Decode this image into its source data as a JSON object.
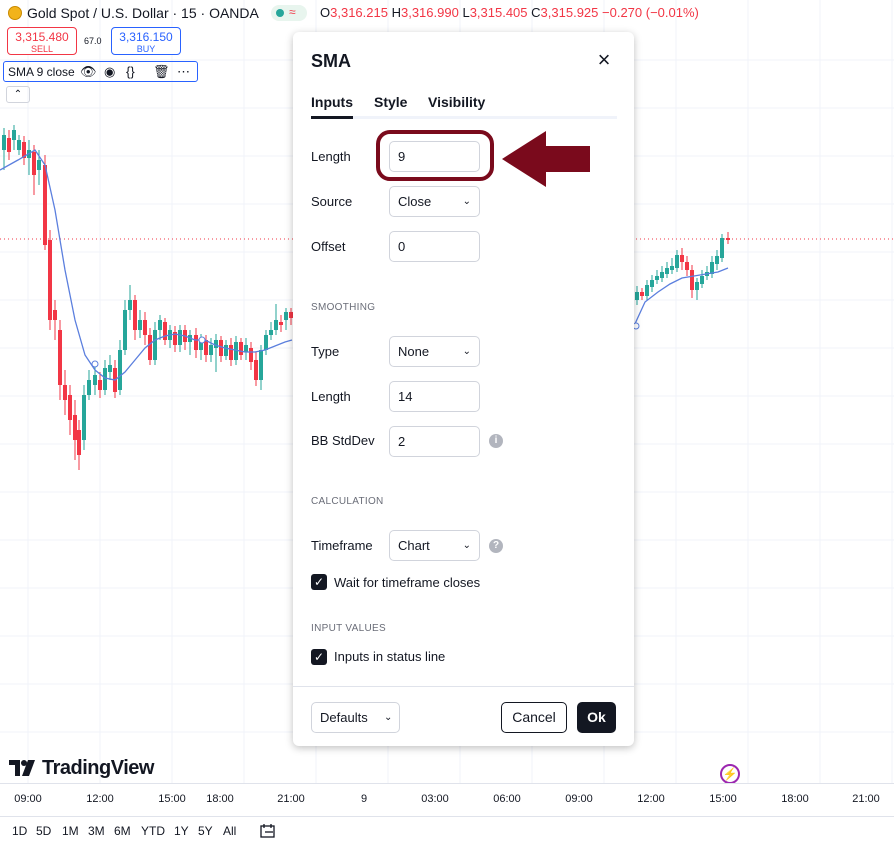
{
  "header": {
    "symbol": "Gold Spot / U.S. Dollar · 15 · OANDA",
    "live_glyph": "≈",
    "ohlc": {
      "o_label": "O",
      "o": "3,316.215",
      "h_label": "H",
      "h": "3,316.990",
      "l_label": "L",
      "l": "3,315.405",
      "c_label": "C",
      "c": "3,315.925",
      "change": "−0.270 (−0.01%)"
    }
  },
  "trade": {
    "sell_price": "3,315.480",
    "sell_label": "SELL",
    "spread": "67.0",
    "buy_price": "3,316.150",
    "buy_label": "BUY"
  },
  "indicator_pill": {
    "label": "SMA 9 close",
    "icons": [
      "eye-icon",
      "settings-icon",
      "braces-icon",
      "trash-icon",
      "more-icon"
    ]
  },
  "brand": "TradingView",
  "time_axis": [
    "09:00",
    "12:00",
    "15:00",
    "18:00",
    "21:00",
    "9",
    "03:00",
    "06:00",
    "09:00",
    "12:00",
    "15:00",
    "18:00",
    "21:00"
  ],
  "ranges": [
    "1D",
    "5D",
    "1M",
    "3M",
    "6M",
    "YTD",
    "1Y",
    "5Y",
    "All"
  ],
  "dialog": {
    "title": "SMA",
    "tabs": [
      "Inputs",
      "Style",
      "Visibility"
    ],
    "active_tab": "Inputs",
    "length_label": "Length",
    "length_value": "9",
    "source_label": "Source",
    "source_value": "Close",
    "offset_label": "Offset",
    "offset_value": "0",
    "smoothing_header": "SMOOTHING",
    "type_label": "Type",
    "type_value": "None",
    "smooth_length_label": "Length",
    "smooth_length_value": "14",
    "bb_label": "BB StdDev",
    "bb_value": "2",
    "calculation_header": "CALCULATION",
    "timeframe_label": "Timeframe",
    "timeframe_value": "Chart",
    "wait_label": "Wait for timeframe closes",
    "wait_checked": true,
    "input_values_header": "INPUT VALUES",
    "status_line_label": "Inputs in status line",
    "status_line_checked": true,
    "defaults_label": "Defaults",
    "cancel_label": "Cancel",
    "ok_label": "Ok"
  },
  "colors": {
    "up": "#26a69a",
    "down": "#f23645",
    "sma_line": "#5b7fde",
    "annotation": "#7a0a1c",
    "accent": "#2962ff"
  },
  "chart_data": {
    "type": "candlestick",
    "series": [
      {
        "name": "SMA 9 close",
        "kind": "line"
      }
    ]
  }
}
